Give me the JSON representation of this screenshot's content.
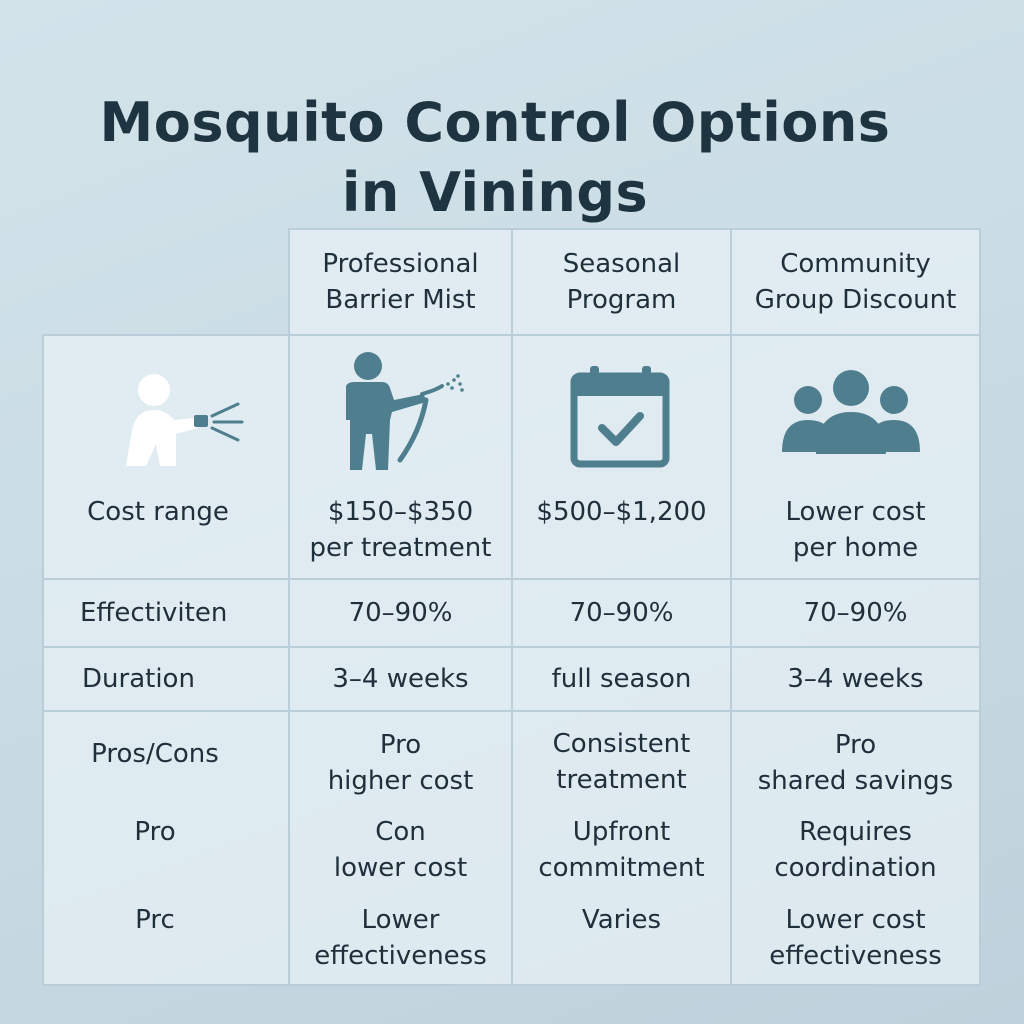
{
  "title": {
    "line1": "Mosquito Control Options",
    "line2": "in Vinings"
  },
  "columns": [
    {
      "line1": "Professional",
      "line2": "Barrier Mist"
    },
    {
      "line1": "Seasonal",
      "line2": "Program"
    },
    {
      "line1": "Community",
      "line2": "Group Discount"
    }
  ],
  "icons": {
    "row_label": "person-spraying-icon",
    "col1": "technician-spraying-icon",
    "col2": "calendar-check-icon",
    "col3": "group-people-icon"
  },
  "rows": {
    "cost": {
      "label": "Cost range",
      "values": [
        {
          "line1": "$150–$350",
          "line2": "per treatment"
        },
        {
          "line1": "$500–$1,200",
          "line2": ""
        },
        {
          "line1": "Lower cost",
          "line2": "per home"
        }
      ]
    },
    "effectiveness": {
      "label": "Effectiviten",
      "values": [
        "70–90%",
        "70–90%",
        "70–90%"
      ]
    },
    "duration": {
      "label": "Duration",
      "values": [
        "3–4 weeks",
        "full season",
        "3–4 weeks"
      ]
    },
    "pros_cons": {
      "labels": [
        "Pros/Cons",
        "Pro",
        "Prc"
      ],
      "col1": [
        {
          "line1": "Pro",
          "line2": "higher cost"
        },
        {
          "line1": "Con",
          "line2": "lower cost"
        },
        {
          "line1": "Lower",
          "line2": "effectiveness"
        }
      ],
      "col2": [
        {
          "line1": "Consistent",
          "line2": "treatment"
        },
        {
          "line1": "Upfront",
          "line2": "commitment"
        },
        {
          "line1": "Varies",
          "line2": ""
        }
      ],
      "col3": [
        {
          "line1": "Pro",
          "line2": "shared savings"
        },
        {
          "line1": "Requires",
          "line2": "coordination"
        },
        {
          "line1": "Lower cost",
          "line2": "effectiveness"
        }
      ]
    }
  },
  "colors": {
    "icon_teal": "#4f7f8e",
    "title": "#1e3441",
    "border": "#b9ced8"
  }
}
